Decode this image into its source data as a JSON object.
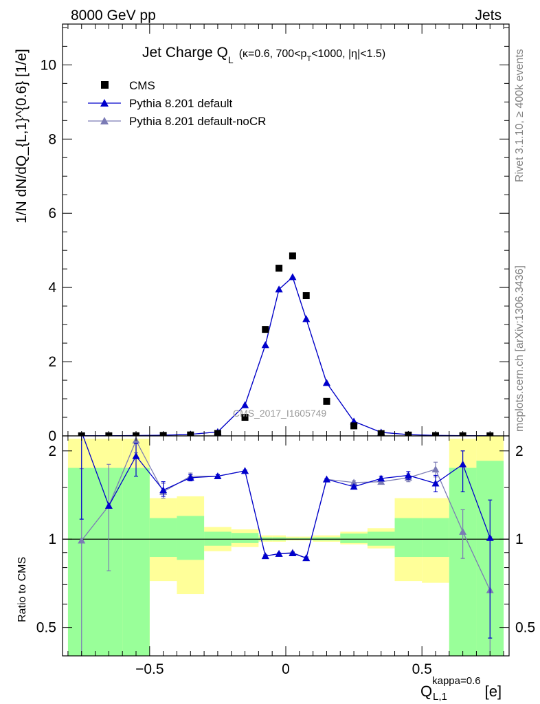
{
  "header": {
    "left": "8000 GeV pp",
    "right": "Jets"
  },
  "side_labels": {
    "rivet": "Rivet 3.1.10, ≥ 400k events",
    "mcplots": "mcplots.cern.ch [arXiv:1306.3436]"
  },
  "colors": {
    "cms": "#000000",
    "default": "#0000cc",
    "noCR": "#7b7bb5",
    "band_green": "#99ff99",
    "band_yellow": "#ffff99",
    "watermark": "#9a9a9a"
  },
  "chart_data": [
    {
      "type": "scatter",
      "title": "Jet Charge Q_L (κ=0.6, 700<p_T<1000, |η|<1.5)",
      "title_main": "Jet Charge Q",
      "title_sub": "L",
      "title_rest": "(κ=0.6, 700<p",
      "title_pt_sub": "T",
      "title_end": "<1000, |η|<1.5)",
      "ylabel": "1/N dN/dQ_{L,1}^{0.6} [1/e]",
      "xlim": [
        -0.82,
        0.82
      ],
      "ylim": [
        0,
        11.1
      ],
      "yticks": [
        0,
        2,
        4,
        6,
        8,
        10
      ],
      "annotation": "CMS_2017_I1605749",
      "legend_position": "top-left",
      "series": [
        {
          "name": "CMS",
          "marker": "square",
          "x": [
            -0.75,
            -0.65,
            -0.55,
            -0.45,
            -0.35,
            -0.25,
            -0.15,
            -0.075,
            -0.025,
            0.025,
            0.075,
            0.15,
            0.25,
            0.35,
            0.45,
            0.55,
            0.65,
            0.75
          ],
          "y": [
            0.002,
            0.003,
            0.004,
            0.012,
            0.025,
            0.065,
            0.5,
            2.87,
            4.52,
            4.85,
            3.78,
            0.93,
            0.27,
            0.06,
            0.022,
            0.008,
            0.004,
            0.002
          ]
        },
        {
          "name": "Pythia 8.201 default",
          "marker": "triangle",
          "x": [
            -0.75,
            -0.65,
            -0.55,
            -0.45,
            -0.35,
            -0.25,
            -0.15,
            -0.075,
            -0.025,
            0.025,
            0.075,
            0.15,
            0.25,
            0.35,
            0.45,
            0.55,
            0.65,
            0.75
          ],
          "y": [
            0.004,
            0.004,
            0.008,
            0.017,
            0.041,
            0.107,
            0.83,
            2.45,
            3.95,
            4.28,
            3.15,
            1.43,
            0.39,
            0.096,
            0.035,
            0.012,
            0.007,
            0.002
          ]
        },
        {
          "name": "Pythia 8.201 default-noCR",
          "marker": "triangle",
          "x": [
            -0.75,
            -0.65,
            -0.55,
            -0.45,
            -0.35,
            -0.25,
            -0.15,
            -0.075,
            -0.025,
            0.025,
            0.075,
            0.15,
            0.25,
            0.35,
            0.45,
            0.55,
            0.65,
            0.75
          ],
          "y": [
            0.002,
            0.004,
            0.009,
            0.017,
            0.041,
            0.107,
            0.83,
            2.45,
            3.95,
            4.28,
            3.15,
            1.43,
            0.39,
            0.095,
            0.034,
            0.013,
            0.004,
            0.001
          ]
        }
      ]
    },
    {
      "type": "scatter",
      "ylabel": "Ratio to CMS",
      "xlabel": "Q_{L,1}^{kappa=0.6} [e]",
      "xlabel_main": "Q",
      "xlabel_sup": "kappa=0.6",
      "xlabel_sub": "L,1",
      "xlabel_unit": "[e]",
      "xlim": [
        -0.82,
        0.82
      ],
      "ylim": [
        0.4,
        2.25
      ],
      "yscale": "log",
      "xticks": [
        -0.5,
        0,
        0.5
      ],
      "xticklabels": [
        "−0.5",
        "0",
        "0.5"
      ],
      "yticks": [
        0.5,
        1,
        2
      ],
      "yticklabels": [
        "0.5",
        "1",
        "2"
      ],
      "reference_line": 1,
      "bands": {
        "edges": [
          -0.8,
          -0.6,
          -0.5,
          -0.4,
          -0.3,
          -0.2,
          -0.1,
          -0.05,
          0,
          0.05,
          0.1,
          0.2,
          0.3,
          0.4,
          0.5,
          0.6,
          0.7,
          0.8
        ],
        "green_low": [
          0.3,
          0.3,
          0.87,
          0.85,
          0.95,
          0.97,
          0.99,
          0.99,
          0.995,
          0.995,
          0.99,
          0.97,
          0.95,
          0.87,
          0.87,
          0.3,
          0.3
        ],
        "green_high": [
          1.75,
          1.75,
          1.18,
          1.2,
          1.06,
          1.05,
          1.015,
          1.015,
          1.01,
          1.01,
          1.015,
          1.045,
          1.06,
          1.18,
          1.18,
          1.75,
          1.85
        ],
        "yellow_low": [
          0.3,
          0.3,
          0.72,
          0.65,
          0.91,
          0.94,
          0.98,
          0.98,
          0.99,
          0.99,
          0.98,
          0.96,
          0.93,
          0.72,
          0.71,
          0.3,
          0.3
        ],
        "yellow_high": [
          2.2,
          2.2,
          1.38,
          1.4,
          1.1,
          1.08,
          1.03,
          1.03,
          1.02,
          1.02,
          1.03,
          1.06,
          1.09,
          1.38,
          1.38,
          2.2,
          2.3
        ]
      },
      "series": [
        {
          "name": "Pythia 8.201 default",
          "x": [
            -0.75,
            -0.65,
            -0.55,
            -0.45,
            -0.35,
            -0.25,
            -0.15,
            -0.075,
            -0.025,
            0.025,
            0.075,
            0.15,
            0.25,
            0.35,
            0.45,
            0.55,
            0.65,
            0.75
          ],
          "y": [
            2.32,
            1.3,
            1.92,
            1.47,
            1.62,
            1.64,
            1.71,
            0.876,
            0.892,
            0.896,
            0.862,
            1.6,
            1.51,
            1.61,
            1.65,
            1.55,
            1.8,
            1.01
          ],
          "err_low": [
            1.15,
            0.0,
            0.28,
            0.07,
            0.04,
            0.02,
            0.01,
            0.008,
            0.006,
            0.006,
            0.008,
            0.01,
            0.02,
            0.03,
            0.05,
            0.1,
            0.35,
            0.55
          ],
          "err_high": [
            0.6,
            0.0,
            0.2,
            0.1,
            0.04,
            0.02,
            0.01,
            0.008,
            0.006,
            0.006,
            0.008,
            0.01,
            0.02,
            0.03,
            0.05,
            0.1,
            0.2,
            0.35
          ]
        },
        {
          "name": "Pythia 8.201 default-noCR",
          "x": [
            -0.75,
            -0.65,
            -0.55,
            -0.45,
            -0.35,
            -0.25,
            -0.15,
            -0.075,
            -0.025,
            0.025,
            0.075,
            0.15,
            0.25,
            0.35,
            0.45,
            0.55,
            0.65,
            0.75
          ],
          "y": [
            0.99,
            1.3,
            2.17,
            1.45,
            1.64,
            1.64,
            1.71,
            0.876,
            0.892,
            0.9,
            0.862,
            1.6,
            1.56,
            1.57,
            1.62,
            1.73,
            1.06,
            0.67
          ],
          "err_low": [
            0.7,
            0.52,
            0.2,
            0.07,
            0.04,
            0.02,
            0.01,
            0.008,
            0.006,
            0.006,
            0.008,
            0.01,
            0.02,
            0.03,
            0.05,
            0.1,
            0.2,
            0.35
          ],
          "err_high": [
            0.75,
            0.5,
            0.2,
            0.1,
            0.04,
            0.02,
            0.01,
            0.008,
            0.006,
            0.006,
            0.008,
            0.01,
            0.02,
            0.03,
            0.05,
            0.1,
            0.2,
            0.35
          ]
        }
      ]
    }
  ]
}
